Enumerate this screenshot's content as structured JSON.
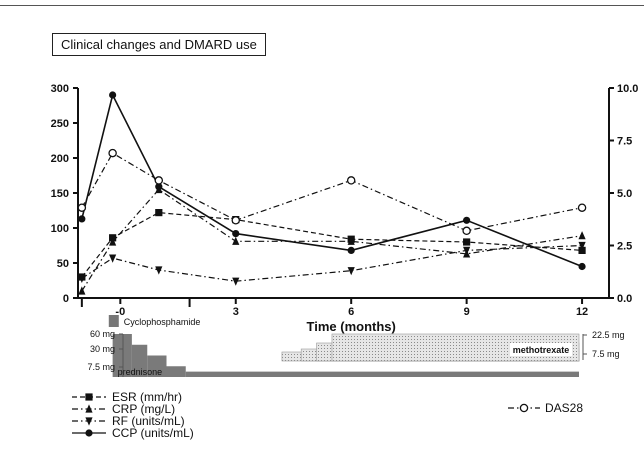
{
  "chart_data": {
    "type": "line",
    "title": "Clinical changes and DMARD use",
    "xlabel": "Time (months)",
    "x_ticks": [
      0,
      3,
      6,
      9,
      12
    ],
    "x_tick_labels": [
      "0",
      "3",
      "6",
      "9",
      "12"
    ],
    "x_tick_display": [
      "-0",
      "3",
      "6",
      "9",
      "12"
    ],
    "xlim": [
      -1.1,
      12.7
    ],
    "ylim_left": [
      0,
      300
    ],
    "yticks_left": [
      "0",
      "50",
      "100",
      "150",
      "200",
      "250",
      "300"
    ],
    "ylim_right": [
      0,
      10
    ],
    "yticks_right": [
      "0.0",
      "2.5",
      "5.0",
      "7.5",
      "10.0"
    ],
    "series": [
      {
        "name": "ESR (mm/hr)",
        "axis": "left",
        "marker": "square",
        "dash": "dash",
        "x": [
          -1,
          -0.2,
          1,
          3,
          6,
          9,
          12
        ],
        "y": [
          30,
          86,
          122,
          112,
          84,
          80,
          68
        ]
      },
      {
        "name": "CRP (mg/L)",
        "axis": "left",
        "marker": "triangle-up",
        "dash": "dashdot",
        "x": [
          -1,
          -0.2,
          1,
          3,
          6,
          9,
          12
        ],
        "y": [
          10,
          80,
          155,
          81,
          81,
          63,
          89
        ]
      },
      {
        "name": "RF (units/mL)",
        "axis": "left",
        "marker": "triangle-down",
        "dash": "dashdot",
        "x": [
          -1,
          -0.2,
          1,
          3,
          6,
          9,
          12
        ],
        "y": [
          28,
          57,
          40,
          24,
          39,
          68,
          75
        ]
      },
      {
        "name": "CCP (units/mL)",
        "axis": "left",
        "marker": "circle-filled",
        "dash": "solid",
        "x": [
          -1,
          -0.2,
          1,
          3,
          6,
          9,
          12
        ],
        "y": [
          113,
          290,
          159,
          92,
          68,
          111,
          45
        ]
      },
      {
        "name": "DAS28",
        "axis": "right",
        "marker": "circle-open",
        "dash": "dashdot",
        "x": [
          -1,
          -0.2,
          1,
          3,
          6,
          9,
          12
        ],
        "y": [
          4.3,
          6.9,
          5.6,
          3.7,
          5.6,
          3.2,
          4.3
        ]
      }
    ],
    "legend": {
      "placement": "bottom",
      "left": [
        "ESR (mm/hr)",
        "CRP (mg/L)",
        "RF (units/mL)",
        "CCP (units/mL)"
      ],
      "right": [
        "DAS28"
      ]
    }
  },
  "drugs": {
    "cyclophosphamide": {
      "label": "Cyclophosphamide",
      "color": "#777777"
    },
    "prednisone": {
      "label": "prednisone",
      "dose_labels": [
        "60 mg",
        "30 mg",
        "7.5 mg"
      ],
      "color": "#7a7a7a",
      "steps": [
        {
          "x_start": -0.2,
          "x_end": 0.3,
          "level": 60
        },
        {
          "x_start": 0.3,
          "x_end": 0.7,
          "level": 45
        },
        {
          "x_start": 0.7,
          "x_end": 1.2,
          "level": 30
        },
        {
          "x_start": 1.2,
          "x_end": 1.7,
          "level": 15
        },
        {
          "x_start": 1.7,
          "x_end": 12.7,
          "level": 7.5
        }
      ]
    },
    "methotrexate": {
      "label": "methotrexate",
      "dose_labels": [
        "22.5 mg",
        "7.5 mg"
      ],
      "color": "#dcdcdc",
      "steps": [
        {
          "x_start": 4.2,
          "x_end": 12.7,
          "level": 7.5
        },
        {
          "x_start": 4.7,
          "x_end": 12.7,
          "level": 10
        },
        {
          "x_start": 5.1,
          "x_end": 12.7,
          "level": 15
        },
        {
          "x_start": 5.5,
          "x_end": 12.7,
          "level": 22.5
        }
      ]
    }
  }
}
